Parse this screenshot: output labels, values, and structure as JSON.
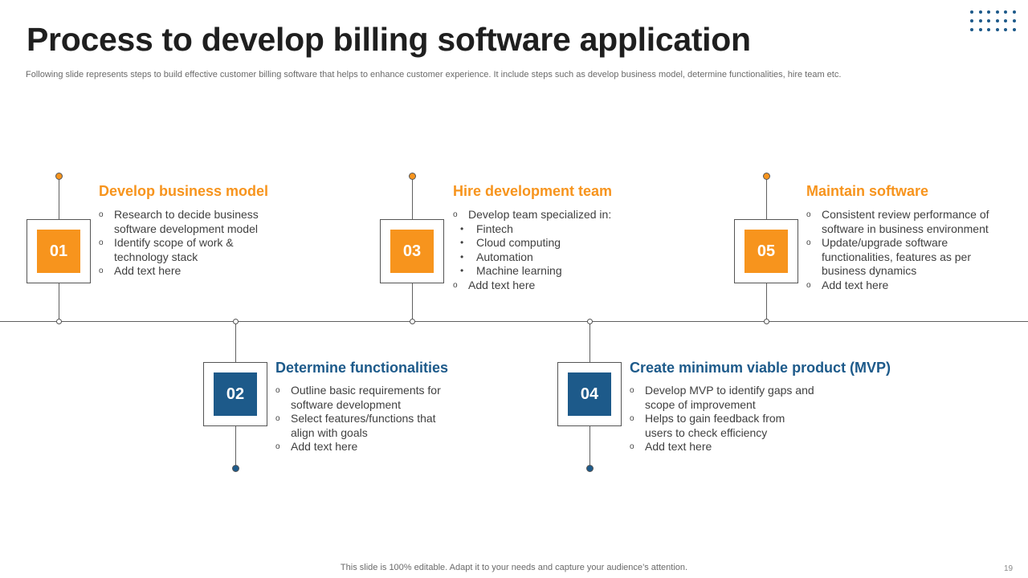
{
  "title": "Process to develop billing software application",
  "subtitle": "Following slide represents steps to build effective customer billing software that helps to enhance customer experience. It include steps such as develop business model, determine functionalities, hire team etc.",
  "steps": [
    {
      "number": "01",
      "title": "Develop business model",
      "items": [
        {
          "text": "Research to decide business software development model"
        },
        {
          "text": "Identify scope of work & technology stack"
        },
        {
          "text": "Add text here"
        }
      ]
    },
    {
      "number": "02",
      "title": "Determine functionalities",
      "items": [
        {
          "text": "Outline basic requirements for software development"
        },
        {
          "text": "Select features/functions that align with goals"
        },
        {
          "text": "Add text here"
        }
      ]
    },
    {
      "number": "03",
      "title": "Hire development team",
      "items": [
        {
          "text": "Develop team specialized in:"
        },
        {
          "text": "Fintech",
          "sub": true
        },
        {
          "text": "Cloud computing",
          "sub": true
        },
        {
          "text": "Automation",
          "sub": true
        },
        {
          "text": "Machine learning",
          "sub": true
        },
        {
          "text": "Add text here"
        }
      ]
    },
    {
      "number": "04",
      "title": "Create minimum viable product (MVP)",
      "items": [
        {
          "text": "Develop MVP to identify gaps and scope of improvement"
        },
        {
          "text": "Helps to gain feedback from users to check efficiency"
        },
        {
          "text": "Add text here"
        }
      ]
    },
    {
      "number": "05",
      "title": "Maintain software",
      "items": [
        {
          "text": "Consistent review performance of software in business environment"
        },
        {
          "text": "Update/upgrade software functionalities, features as per business dynamics"
        },
        {
          "text": "Add text here"
        }
      ]
    }
  ],
  "footer": "This slide is 100% editable. Adapt it to your needs and capture your audience’s attention.",
  "page_number": "19",
  "colors": {
    "accent_orange": "#f7941d",
    "accent_blue": "#1d5a8a"
  }
}
